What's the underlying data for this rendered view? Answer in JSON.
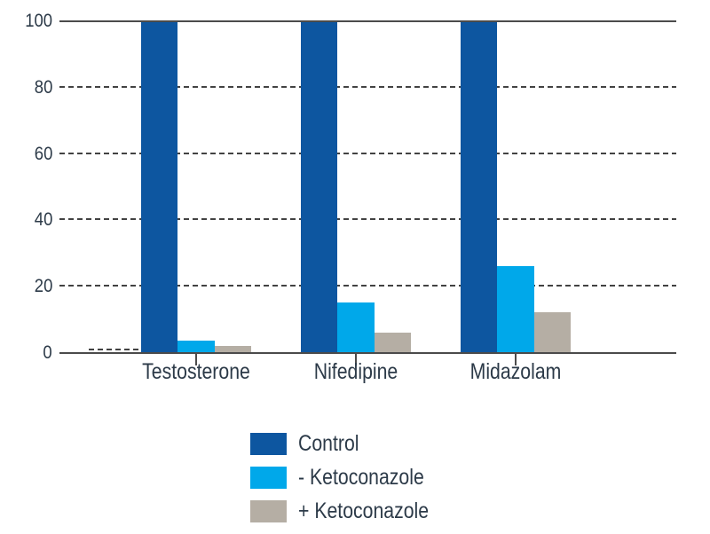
{
  "chart_data": {
    "type": "bar",
    "title": "",
    "xlabel": "",
    "ylabel": "",
    "categories": [
      "Testosterone",
      "Nifedipine",
      "Midazolam"
    ],
    "series": [
      {
        "name": "Control",
        "color": "#0d56a0",
        "values": [
          100,
          100,
          100
        ]
      },
      {
        "name": "- Ketoconazole",
        "color": "#00a8ea",
        "values": [
          3.5,
          15,
          26
        ]
      },
      {
        "name": "+ Ketoconazole",
        "color": "#b5aea4",
        "values": [
          2,
          6,
          12
        ]
      }
    ],
    "ylim": [
      0,
      100
    ],
    "yticks": [
      0,
      20,
      40,
      60,
      80,
      100
    ],
    "grid": "horizontal dashed gridlines at 20/40/60/80, solid line at 100, solid axis at 0",
    "legend_position": "bottom",
    "legend_entries": [
      "Control",
      "- Ketoconazole",
      "+ Ketoconazole"
    ]
  },
  "colors": {
    "background": "#ffffff",
    "axis": "#4b4b4b",
    "gridline": "#424242",
    "text": "#2c3a48"
  }
}
